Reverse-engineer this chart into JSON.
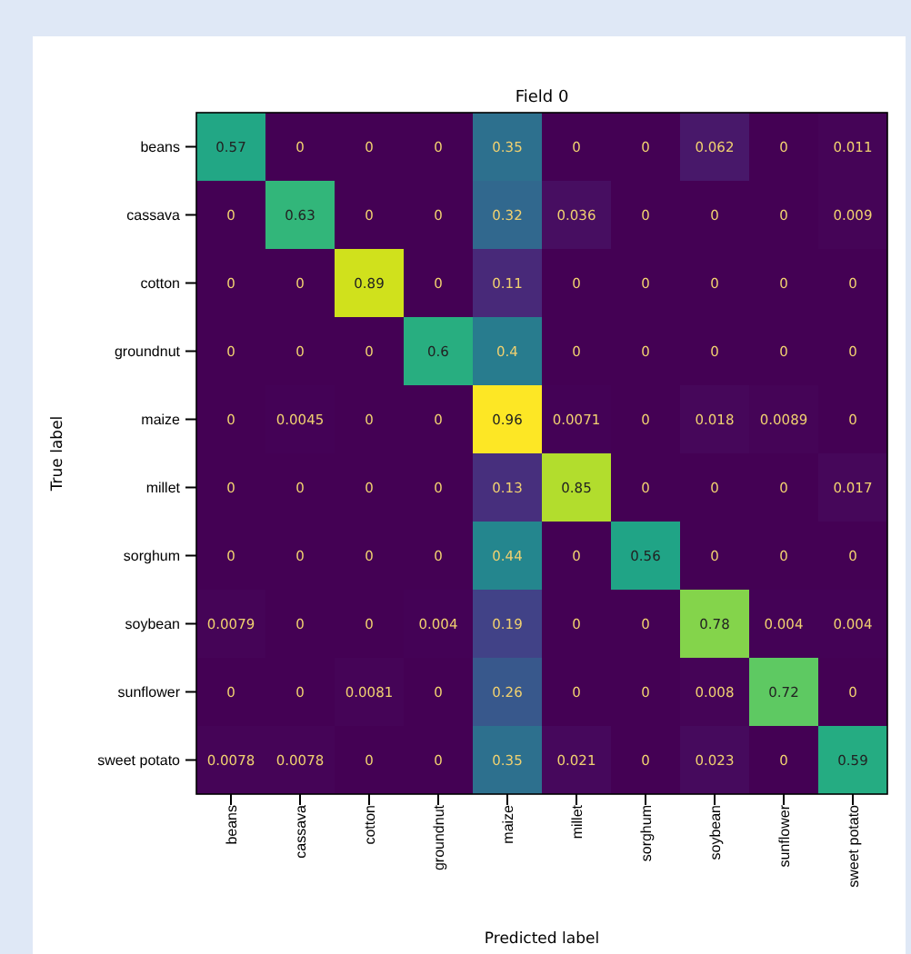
{
  "chart_data": {
    "type": "heatmap",
    "title": "Field 0",
    "xlabel": "Predicted label",
    "ylabel": "True label",
    "categories": [
      "beans",
      "cassava",
      "cotton",
      "groundnut",
      "maize",
      "millet",
      "sorghum",
      "soybean",
      "sunflower",
      "sweet potato"
    ],
    "y_categories": [
      "beans",
      "cassava",
      "cotton",
      "groundnut",
      "maize",
      "millet",
      "sorghum",
      "soybean",
      "sunflower",
      "sweet potato"
    ],
    "cells": [
      [
        0.57,
        0,
        0,
        0,
        0.35,
        0,
        0,
        0.062,
        0,
        0.011
      ],
      [
        0,
        0.63,
        0,
        0,
        0.32,
        0.036,
        0,
        0,
        0,
        0.009
      ],
      [
        0,
        0,
        0.89,
        0,
        0.11,
        0,
        0,
        0,
        0,
        0
      ],
      [
        0,
        0,
        0,
        0.6,
        0.4,
        0,
        0,
        0,
        0,
        0
      ],
      [
        0,
        0.0045,
        0,
        0,
        0.96,
        0.0071,
        0,
        0.018,
        0.0089,
        0
      ],
      [
        0,
        0,
        0,
        0,
        0.13,
        0.85,
        0,
        0,
        0,
        0.017
      ],
      [
        0,
        0,
        0,
        0,
        0.44,
        0,
        0.56,
        0,
        0,
        0
      ],
      [
        0.0079,
        0,
        0,
        0.004,
        0.19,
        0,
        0,
        0.78,
        0.004,
        0.004
      ],
      [
        0,
        0,
        0.0081,
        0,
        0.26,
        0,
        0,
        0.008,
        0.72,
        0
      ],
      [
        0.0078,
        0.0078,
        0,
        0,
        0.35,
        0.021,
        0,
        0.023,
        0,
        0.59
      ]
    ],
    "data_labels": true
  }
}
